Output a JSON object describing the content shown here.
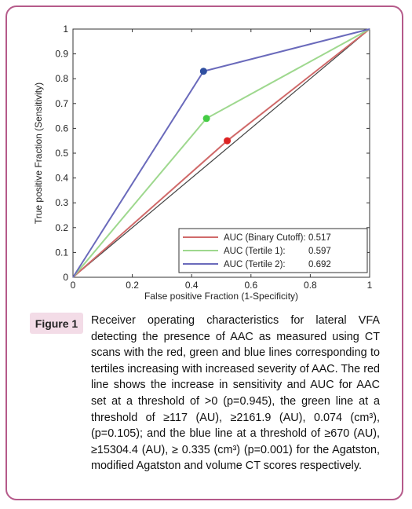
{
  "chart_data": {
    "type": "line",
    "xlabel": "False positive Fraction (1-Specificity)",
    "ylabel": "True positive Fraction (Sensitivity)",
    "xlim": [
      0,
      1
    ],
    "ylim": [
      0,
      1
    ],
    "x_ticks": [
      "0",
      "0.2",
      "0.4",
      "0.6",
      "0.8",
      "1"
    ],
    "y_ticks": [
      "0",
      "0.1",
      "0.2",
      "0.3",
      "0.4",
      "0.5",
      "0.6",
      "0.7",
      "0.8",
      "0.9",
      "1"
    ],
    "legend_position": "bottom-right",
    "grid": false,
    "diagonal": [
      [
        0,
        0
      ],
      [
        1,
        1
      ]
    ],
    "series": [
      {
        "name": "AUC (Binary Cutoff):",
        "auc": "0.517",
        "color": "#d06a6a",
        "marker_color": "#dd2222",
        "points": [
          [
            0,
            0
          ],
          [
            0.52,
            0.55
          ],
          [
            1,
            1
          ]
        ]
      },
      {
        "name": "AUC (Tertile 1):",
        "auc": "0.597",
        "color": "#9ed88e",
        "marker_color": "#44cc44",
        "points": [
          [
            0,
            0
          ],
          [
            0.45,
            0.64
          ],
          [
            1,
            1
          ]
        ]
      },
      {
        "name": "AUC (Tertile 2):",
        "auc": "0.692",
        "color": "#6a6abb",
        "marker_color": "#2f4fa0",
        "points": [
          [
            0,
            0
          ],
          [
            0.44,
            0.83
          ],
          [
            1,
            1
          ]
        ]
      }
    ]
  },
  "figure": {
    "label": "Figure 1",
    "caption": "Receiver operating characteristics for lateral VFA detecting the presence of AAC as measured using CT scans with the red, green and blue lines corresponding to tertiles increasing with increased severity of AAC. The red line shows the increase in sensitivity and AUC for AAC set at a threshold of >0 (p=0.945), the green line at a threshold of ≥117 (AU), ≥2161.9 (AU), 0.074 (cm³), (p=0.105); and the blue line at a threshold of ≥670 (AU), ≥15304.4 (AU), ≥ 0.335 (cm³) (p=0.001) for the Agatston, modified Agatston and volume CT scores respectively."
  }
}
